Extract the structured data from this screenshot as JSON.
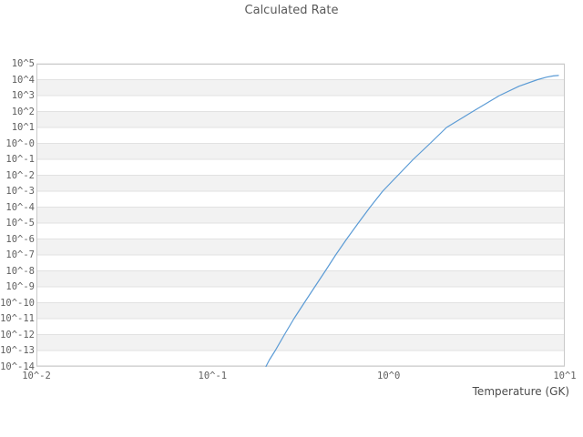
{
  "title": "Calculated Rate",
  "x_axis": {
    "label": "Temperature (GK)",
    "tick_labels": [
      "10^-2",
      "10^-1",
      "10^0",
      "10^1"
    ]
  },
  "y_axis": {
    "tick_labels": [
      "10^5",
      "10^4",
      "10^3",
      "10^2",
      "10^1",
      "10^-0",
      "10^-1",
      "10^-2",
      "10^-3",
      "10^-4",
      "10^-5",
      "10^-6",
      "10^-7",
      "10^-8",
      "10^-9",
      "10^-10",
      "10^-11",
      "10^-12",
      "10^-13",
      "10^-14"
    ]
  },
  "colors": {
    "curve": "#5b9bd5",
    "band": "#f2f2f2",
    "gridline": "#e2e2e2",
    "border": "#c9c9c9",
    "text": "#606060"
  },
  "chart_data": {
    "type": "line",
    "title": "Calculated Rate",
    "xlabel": "Temperature (GK)",
    "ylabel": "",
    "xscale": "log",
    "yscale": "log",
    "xlim": [
      0.01,
      10
    ],
    "ylim": [
      1e-14,
      100000.0
    ],
    "grid": "horizontal-bands-alternating",
    "legend": "none",
    "x_tick_labels": [
      "10^-2",
      "10^-1",
      "10^0",
      "10^1"
    ],
    "y_tick_labels": [
      "10^5",
      "10^4",
      "10^3",
      "10^2",
      "10^1",
      "10^-0",
      "10^-1",
      "10^-2",
      "10^-3",
      "10^-4",
      "10^-5",
      "10^-6",
      "10^-7",
      "10^-8",
      "10^-9",
      "10^-10",
      "10^-11",
      "10^-12",
      "10^-13",
      "10^-14"
    ],
    "series": [
      {
        "name": "Calculated Rate",
        "color": "#5b9bd5",
        "points": [
          [
            0.201,
            1e-14
          ],
          [
            0.21,
            2.5e-14
          ],
          [
            0.227,
            1e-13
          ],
          [
            0.256,
            1e-12
          ],
          [
            0.29,
            1e-11
          ],
          [
            0.332,
            1e-10
          ],
          [
            0.381,
            1e-09
          ],
          [
            0.437,
            1e-08
          ],
          [
            0.5,
            1e-07
          ],
          [
            0.578,
            1e-06
          ],
          [
            0.672,
            1e-05
          ],
          [
            0.785,
            0.0001
          ],
          [
            0.925,
            0.001
          ],
          [
            1.13,
            0.01
          ],
          [
            1.38,
            0.1
          ],
          [
            1.72,
            1.0
          ],
          [
            2.13,
            10.0
          ],
          [
            3.0,
            100.0
          ],
          [
            4.25,
            1000.0
          ],
          [
            5.5,
            3900.0
          ],
          [
            7.0,
            10000.0
          ],
          [
            7.9,
            14500.0
          ],
          [
            8.6,
            17200.0
          ],
          [
            9.2,
            18200.0
          ]
        ]
      }
    ]
  }
}
